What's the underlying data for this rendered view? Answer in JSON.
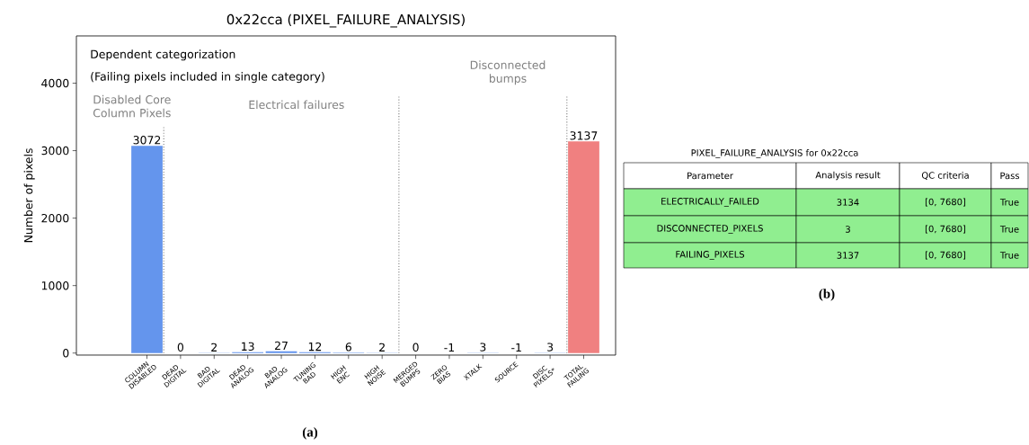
{
  "chart_data": [
    {
      "type": "bar",
      "title": "0x22cca (PIXEL_FAILURE_ANALYSIS)",
      "ylabel": "Number of pixels",
      "categories": [
        "COLUMN DISABLED",
        "DEAD DIGITAL",
        "BAD DIGITAL",
        "DEAD ANALOG",
        "BAD ANALOG",
        "TUNING BAD",
        "HIGH ENC",
        "HIGH NOISE",
        "MERGED BUMPS",
        "ZERO BIAS",
        "XTALK",
        "SOURCE",
        "DISC PIXELS*",
        "TOTAL FAILING"
      ],
      "values": [
        3072,
        0,
        2,
        13,
        27,
        12,
        6,
        2,
        0,
        -1,
        3,
        -1,
        3,
        3137
      ],
      "colors": [
        "#6495ed",
        "#6495ed",
        "#6495ed",
        "#6495ed",
        "#6495ed",
        "#6495ed",
        "#6495ed",
        "#6495ed",
        "#6495ed",
        "#6495ed",
        "#6495ed",
        "#6495ed",
        "#6495ed",
        "#f08080"
      ],
      "data_labels": true,
      "ylim": [
        -30,
        4700
      ],
      "yticks": [
        0,
        1000,
        2000,
        3000,
        4000
      ],
      "annotations": [
        "Dependent categorization",
        "(Failing pixels included in single category)",
        "Disabled Core Column Pixels",
        "Electrical failures",
        "Disconnected bumps",
        "(a)"
      ]
    },
    {
      "type": "other",
      "title": "PIXEL_FAILURE_ANALYSIS for 0x22cca",
      "color": "#90ee90",
      "annotations": [
        "Parameter",
        "Analysis result",
        "QC criteria",
        "Pass",
        "ELECTRICALLY_FAILED",
        "3134",
        "[0, 7680]",
        "True",
        "DISCONNECTED_PIXELS",
        "3",
        "[0, 7680]",
        "True",
        "FAILING_PIXELS",
        "3137",
        "[0, 7680]",
        "True",
        "(b)"
      ]
    }
  ]
}
